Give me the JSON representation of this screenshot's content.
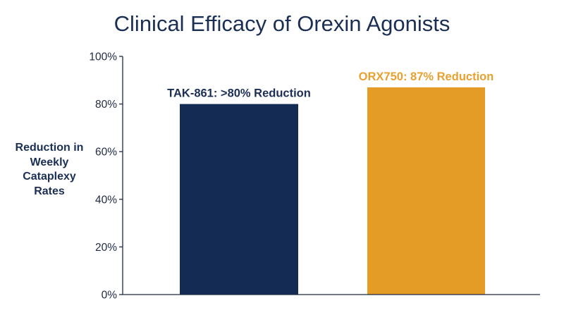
{
  "chart_data": {
    "type": "bar",
    "title": "Clinical Efficacy of Orexin Agonists",
    "ylabel": "Reduction in Weekly Cataplexy Rates",
    "xlabel": "",
    "ylim": [
      0,
      100
    ],
    "y_ticks": [
      0,
      20,
      40,
      60,
      80,
      100
    ],
    "y_tick_labels": [
      "0%",
      "20%",
      "40%",
      "60%",
      "80%",
      "100%"
    ],
    "grid": false,
    "bars": [
      {
        "label": "TAK-861: >80% Reduction",
        "value": 80,
        "color": "#142b54",
        "label_color": "#1b2f55"
      },
      {
        "label": "ORX750: 87% Reduction",
        "value": 87,
        "color": "#e59c26",
        "label_color": "#e8a030"
      }
    ]
  }
}
